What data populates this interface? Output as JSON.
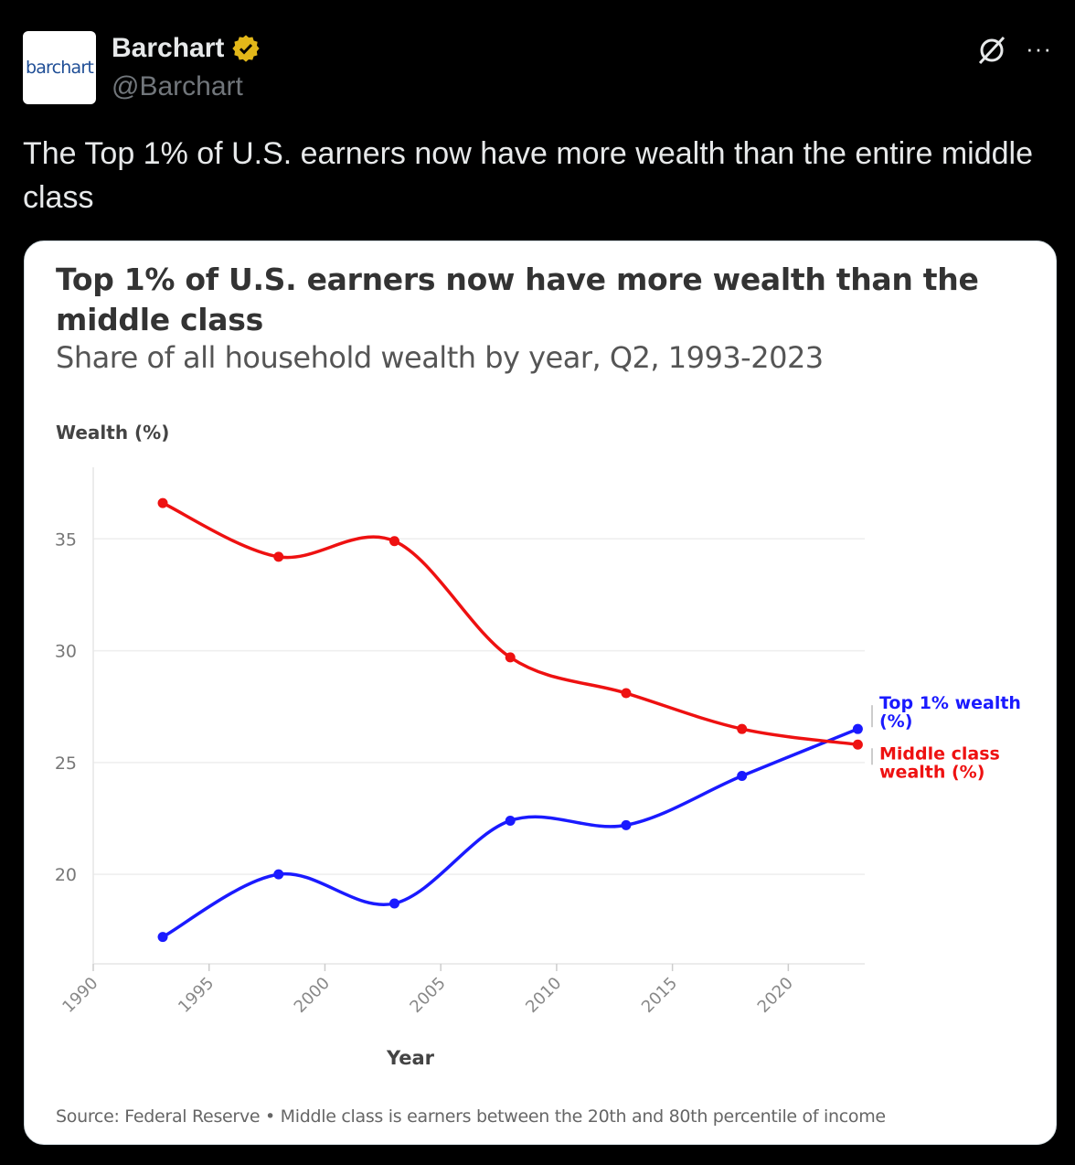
{
  "tweet": {
    "avatar_text": "barchart",
    "display_name": "Barchart",
    "handle": "@Barchart",
    "verified_icon": "verified-badge-gold",
    "text": "The Top 1% of U.S. earners now have more wealth than the entire middle class",
    "icons": [
      "grok-icon",
      "more-icon"
    ],
    "more_glyph": "···"
  },
  "chart_data": {
    "type": "line",
    "title": "Top 1% of U.S. earners now have more wealth than the middle class",
    "subtitle": "Share of all household wealth by year, Q2, 1993-2023",
    "ylabel": "Wealth (%)",
    "xlabel": "Year",
    "x": [
      1993,
      1998,
      2003,
      2008,
      2013,
      2018,
      2023
    ],
    "series": [
      {
        "name": "Top 1% wealth (%)",
        "color": "#1a1aff",
        "values": [
          17.2,
          20.0,
          18.7,
          22.4,
          22.2,
          24.4,
          26.5
        ]
      },
      {
        "name": "Middle class wealth (%)",
        "color": "#ee1111",
        "values": [
          36.6,
          34.2,
          34.9,
          29.7,
          28.1,
          26.5,
          25.8
        ]
      }
    ],
    "xlim": [
      1990,
      2023.3
    ],
    "ylim": [
      16,
      38.2
    ],
    "xticks": [
      "1990",
      "1995",
      "2000",
      "2005",
      "2010",
      "2015",
      "2020"
    ],
    "yticks": [
      "20",
      "25",
      "30",
      "35"
    ],
    "grid": "horizontal",
    "legend": "right, labels at line ends",
    "source": "Source: Federal Reserve • Middle class is earners between the 20th and 80th percentile of income"
  }
}
